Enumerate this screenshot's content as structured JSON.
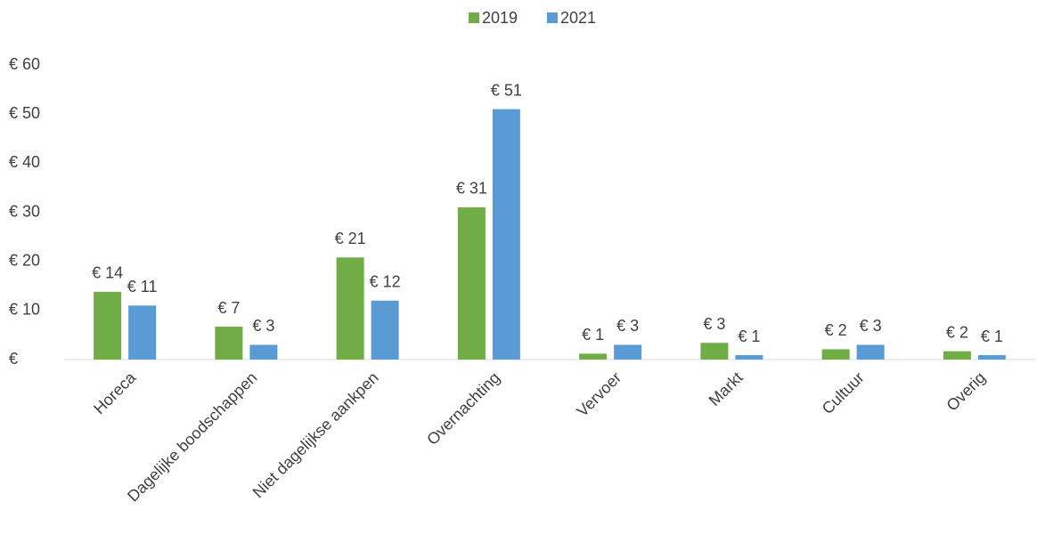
{
  "chart_data": {
    "type": "bar",
    "categories": [
      "Horeca",
      "Dagelijke boodschappen",
      "Niet dagelijkse aankpen",
      "Overnachting",
      "Vervoer",
      "Markt",
      "Cultuur",
      "Overig"
    ],
    "series": [
      {
        "name": "2019",
        "color": "#70ad47",
        "values": [
          13.8,
          6.7,
          20.8,
          31,
          1.2,
          3.4,
          2.1,
          1.7
        ],
        "value_labels": [
          "€ 14",
          "€ 7",
          "€ 21",
          "€ 31",
          "€ 1",
          "€ 3",
          "€ 2",
          "€ 2"
        ]
      },
      {
        "name": "2021",
        "color": "#5b9bd5",
        "values": [
          11,
          3,
          12,
          51,
          3,
          0.9,
          3,
          0.9
        ],
        "value_labels": [
          "€ 11",
          "€ 3",
          "€ 12",
          "€ 51",
          "€ 3",
          "€ 1",
          "€ 3",
          "€ 1"
        ]
      }
    ],
    "ylim": [
      0,
      60
    ],
    "yticks": [
      {
        "value": 0,
        "label": "€"
      },
      {
        "value": 10,
        "label": "€ 10"
      },
      {
        "value": 20,
        "label": "€ 20"
      },
      {
        "value": 30,
        "label": "€ 30"
      },
      {
        "value": 40,
        "label": "€ 40"
      },
      {
        "value": 50,
        "label": "€ 50"
      },
      {
        "value": 60,
        "label": "€ 60"
      }
    ],
    "legend": "top"
  }
}
